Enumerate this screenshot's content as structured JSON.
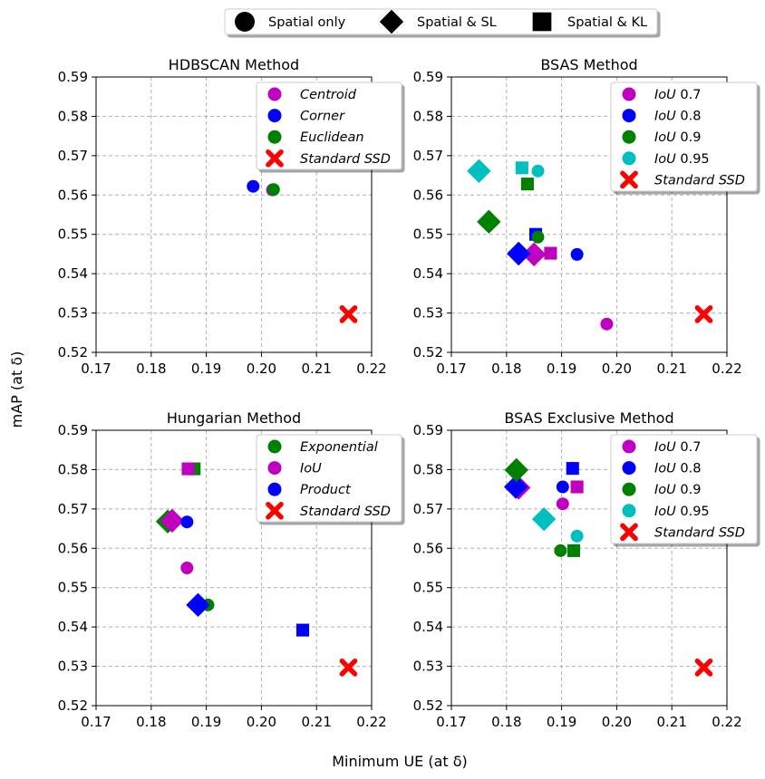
{
  "figure": {
    "xlabel": "Minimum UE (at δ)",
    "ylabel": "mAP (at δ)"
  },
  "top_legend": [
    {
      "marker": "circle",
      "label": "Spatial only"
    },
    {
      "marker": "diamond",
      "label": "Spatial & SL"
    },
    {
      "marker": "square",
      "label": "Spatial & KL"
    }
  ],
  "colors": {
    "magenta": "#bf00bf",
    "blue": "#0000ff",
    "green": "#008000",
    "cyan": "#00bfbf",
    "red": "#ff0000"
  },
  "chart_data": [
    {
      "type": "scatter",
      "title": "HDBSCAN Method",
      "xlim": [
        0.17,
        0.22
      ],
      "ylim": [
        0.52,
        0.59
      ],
      "xticks": [
        "0.17",
        "0.18",
        "0.19",
        "0.20",
        "0.21",
        "0.22"
      ],
      "yticks": [
        "0.52",
        "0.53",
        "0.54",
        "0.55",
        "0.56",
        "0.57",
        "0.58",
        "0.59"
      ],
      "grid": true,
      "legend_position": "top-right",
      "series": [
        {
          "name": "Centroid",
          "italic_prefix": "Centroid",
          "suffix": "",
          "color": "#bf00bf",
          "points": [
            {
              "x": 0.202,
              "y": 0.5613,
              "marker": "circle"
            }
          ]
        },
        {
          "name": "Corner",
          "italic_prefix": "Corner",
          "suffix": "",
          "color": "#0000ff",
          "points": [
            {
              "x": 0.1985,
              "y": 0.5622,
              "marker": "circle"
            }
          ]
        },
        {
          "name": "Euclidean",
          "italic_prefix": "Euclidean",
          "suffix": "",
          "color": "#008000",
          "points": [
            {
              "x": 0.2022,
              "y": 0.5614,
              "marker": "circle"
            }
          ]
        },
        {
          "name": "Standard SSD",
          "italic_prefix": "Standard SSD",
          "suffix": "",
          "color": "#ff0000",
          "points": [
            {
              "x": 0.2158,
              "y": 0.5297,
              "marker": "x"
            }
          ]
        }
      ]
    },
    {
      "type": "scatter",
      "title": "BSAS Method",
      "xlim": [
        0.17,
        0.22
      ],
      "ylim": [
        0.52,
        0.59
      ],
      "xticks": [
        "0.17",
        "0.18",
        "0.19",
        "0.20",
        "0.21",
        "0.22"
      ],
      "yticks": [
        "0.52",
        "0.53",
        "0.54",
        "0.55",
        "0.56",
        "0.57",
        "0.58",
        "0.59"
      ],
      "grid": true,
      "legend_position": "top-right",
      "series": [
        {
          "name": "IoU 0.7",
          "italic_prefix": "IoU",
          "suffix": " 0.7",
          "color": "#bf00bf",
          "points": [
            {
              "x": 0.1982,
              "y": 0.5272,
              "marker": "circle"
            },
            {
              "x": 0.185,
              "y": 0.5449,
              "marker": "diamond"
            },
            {
              "x": 0.188,
              "y": 0.5452,
              "marker": "square"
            }
          ]
        },
        {
          "name": "IoU 0.8",
          "italic_prefix": "IoU",
          "suffix": " 0.8",
          "color": "#0000ff",
          "points": [
            {
              "x": 0.1928,
              "y": 0.5449,
              "marker": "circle"
            },
            {
              "x": 0.1822,
              "y": 0.5451,
              "marker": "diamond"
            },
            {
              "x": 0.1853,
              "y": 0.55,
              "marker": "square"
            }
          ]
        },
        {
          "name": "IoU 0.9",
          "italic_prefix": "IoU",
          "suffix": " 0.9",
          "color": "#008000",
          "points": [
            {
              "x": 0.1857,
              "y": 0.5493,
              "marker": "circle"
            },
            {
              "x": 0.1768,
              "y": 0.5532,
              "marker": "diamond"
            },
            {
              "x": 0.1838,
              "y": 0.5628,
              "marker": "square"
            }
          ]
        },
        {
          "name": "IoU 0.95",
          "italic_prefix": "IoU",
          "suffix": " 0.95",
          "color": "#00bfbf",
          "points": [
            {
              "x": 0.1857,
              "y": 0.5661,
              "marker": "circle"
            },
            {
              "x": 0.175,
              "y": 0.5661,
              "marker": "diamond"
            },
            {
              "x": 0.1828,
              "y": 0.5669,
              "marker": "square"
            }
          ]
        },
        {
          "name": "Standard SSD",
          "italic_prefix": "Standard SSD",
          "suffix": "",
          "color": "#ff0000",
          "points": [
            {
              "x": 0.2158,
              "y": 0.5297,
              "marker": "x"
            }
          ]
        }
      ]
    },
    {
      "type": "scatter",
      "title": "Hungarian Method",
      "xlim": [
        0.17,
        0.22
      ],
      "ylim": [
        0.52,
        0.59
      ],
      "xticks": [
        "0.17",
        "0.18",
        "0.19",
        "0.20",
        "0.21",
        "0.22"
      ],
      "yticks": [
        "0.52",
        "0.53",
        "0.54",
        "0.55",
        "0.56",
        "0.57",
        "0.58",
        "0.59"
      ],
      "grid": true,
      "legend_position": "top-right",
      "series": [
        {
          "name": "Exponential",
          "italic_prefix": "Exponential",
          "suffix": "",
          "color": "#008000",
          "points": [
            {
              "x": 0.1903,
              "y": 0.5456,
              "marker": "circle"
            },
            {
              "x": 0.183,
              "y": 0.5668,
              "marker": "diamond"
            },
            {
              "x": 0.1878,
              "y": 0.5802,
              "marker": "square"
            }
          ]
        },
        {
          "name": "IoU",
          "italic_prefix": "IoU",
          "suffix": "",
          "color": "#bf00bf",
          "points": [
            {
              "x": 0.1865,
              "y": 0.555,
              "marker": "circle"
            },
            {
              "x": 0.1838,
              "y": 0.567,
              "marker": "diamond"
            },
            {
              "x": 0.1867,
              "y": 0.5802,
              "marker": "square"
            }
          ]
        },
        {
          "name": "Product",
          "italic_prefix": "Product",
          "suffix": "",
          "color": "#0000ff",
          "points": [
            {
              "x": 0.1865,
              "y": 0.5667,
              "marker": "circle"
            },
            {
              "x": 0.1885,
              "y": 0.5456,
              "marker": "diamond"
            },
            {
              "x": 0.2075,
              "y": 0.5392,
              "marker": "square"
            }
          ]
        },
        {
          "name": "Standard SSD",
          "italic_prefix": "Standard SSD",
          "suffix": "",
          "color": "#ff0000",
          "points": [
            {
              "x": 0.2158,
              "y": 0.5297,
              "marker": "x"
            }
          ]
        }
      ]
    },
    {
      "type": "scatter",
      "title": "BSAS Exclusive Method",
      "xlim": [
        0.17,
        0.22
      ],
      "ylim": [
        0.52,
        0.59
      ],
      "xticks": [
        "0.17",
        "0.18",
        "0.19",
        "0.20",
        "0.21",
        "0.22"
      ],
      "yticks": [
        "0.52",
        "0.53",
        "0.54",
        "0.55",
        "0.56",
        "0.57",
        "0.58",
        "0.59"
      ],
      "grid": true,
      "legend_position": "top-right",
      "series": [
        {
          "name": "IoU 0.7",
          "italic_prefix": "IoU",
          "suffix": " 0.7",
          "color": "#bf00bf",
          "points": [
            {
              "x": 0.1902,
              "y": 0.5713,
              "marker": "circle"
            },
            {
              "x": 0.1822,
              "y": 0.5754,
              "marker": "diamond"
            },
            {
              "x": 0.1928,
              "y": 0.5756,
              "marker": "square"
            }
          ]
        },
        {
          "name": "IoU 0.8",
          "italic_prefix": "IoU",
          "suffix": " 0.8",
          "color": "#0000ff",
          "points": [
            {
              "x": 0.1902,
              "y": 0.5756,
              "marker": "circle"
            },
            {
              "x": 0.1817,
              "y": 0.5756,
              "marker": "diamond"
            },
            {
              "x": 0.192,
              "y": 0.5803,
              "marker": "square"
            }
          ]
        },
        {
          "name": "IoU 0.9",
          "italic_prefix": "IoU",
          "suffix": " 0.9",
          "color": "#008000",
          "points": [
            {
              "x": 0.1898,
              "y": 0.5594,
              "marker": "circle"
            },
            {
              "x": 0.1818,
              "y": 0.5799,
              "marker": "diamond"
            },
            {
              "x": 0.1922,
              "y": 0.5594,
              "marker": "square"
            }
          ]
        },
        {
          "name": "IoU 0.95",
          "italic_prefix": "IoU",
          "suffix": " 0.95",
          "color": "#00bfbf",
          "points": [
            {
              "x": 0.1928,
              "y": 0.5631,
              "marker": "circle"
            },
            {
              "x": 0.1868,
              "y": 0.5674,
              "marker": "diamond"
            }
          ]
        },
        {
          "name": "Standard SSD",
          "italic_prefix": "Standard SSD",
          "suffix": "",
          "color": "#ff0000",
          "points": [
            {
              "x": 0.2158,
              "y": 0.5297,
              "marker": "x"
            }
          ]
        }
      ]
    }
  ]
}
